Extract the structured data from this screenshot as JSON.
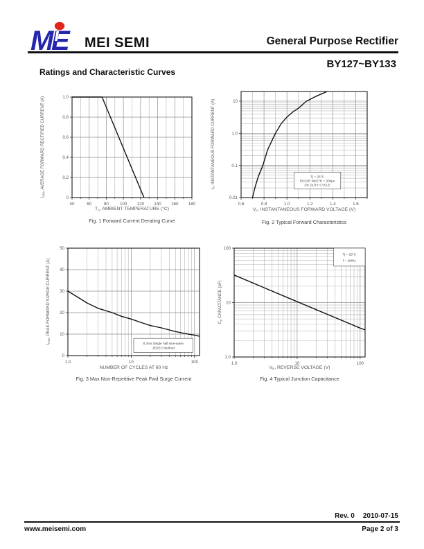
{
  "header": {
    "brand": "MEI SEMI",
    "doc_type": "General Purpose Rectifier",
    "part_range": "BY127~BY133",
    "section_title": "Ratings and Characteristic Curves",
    "logo": {
      "m": "M",
      "e": "E",
      "letter_color": "#2526ad",
      "dot_color": "#e3241c"
    }
  },
  "footer": {
    "revision": "Rev. 0",
    "date": "2010-07-15",
    "website": "www.meisemi.com",
    "page": "Page 2 of 3"
  },
  "chart_data": [
    {
      "id": "fig1",
      "type": "line",
      "caption": "Fig. 1 Forward Current Derating Curve",
      "xlabel": {
        "sym": "T",
        "sub": "A",
        "rest": ", AMBIENT TEMPERATURE (°C)"
      },
      "ylabel": {
        "sym": "I",
        "sub": "(AV)",
        "rest": ", AVERAGE FORWARD RECTIFIED CURRENT (A)"
      },
      "x_scale": "linear",
      "y_scale": "linear",
      "xlim": [
        40,
        180
      ],
      "ylim": [
        0,
        1
      ],
      "x_ticks": [
        40,
        60,
        80,
        100,
        120,
        140,
        160,
        180
      ],
      "x_tick_labels": [
        "40",
        "60",
        "80",
        "100",
        "120",
        "140",
        "160",
        "180"
      ],
      "x_minor": [
        50,
        70,
        90,
        110,
        130,
        150,
        170
      ],
      "y_ticks": [
        0,
        0.2,
        0.4,
        0.6,
        0.8,
        1.0
      ],
      "y_tick_labels": [
        "0",
        "0.2",
        "0.4",
        "0.6",
        "0.8",
        "1.0"
      ],
      "y_minor": [],
      "series": [
        {
          "name": "derating-curve",
          "points": [
            [
              40,
              1.0
            ],
            [
              75,
              1.0
            ],
            [
              124,
              0
            ]
          ]
        }
      ]
    },
    {
      "id": "fig2",
      "type": "line",
      "caption": "Fig. 2 Typical Forward Characteristics",
      "xlabel": {
        "sym": "V",
        "sub": "F",
        "rest": ", INSTANTANEOUS FORWARD VOLTAGE (V)"
      },
      "ylabel": {
        "sym": "I",
        "sub": "F",
        "rest": ", INSTANTANEOUS FORWARD CURRENT (A)"
      },
      "x_scale": "linear",
      "y_scale": "log",
      "xlim": [
        0.6,
        1.7
      ],
      "ylim": [
        0.01,
        20
      ],
      "x_ticks": [
        0.6,
        0.8,
        1.0,
        1.2,
        1.4,
        1.6
      ],
      "x_tick_labels": [
        "0.6",
        "0.8",
        "1.0",
        "1.2",
        "1.4",
        "1.6"
      ],
      "x_minor": [
        0.7,
        0.9,
        1.1,
        1.3,
        1.5,
        1.7
      ],
      "y_ticks": [
        0.01,
        0.1,
        1,
        10
      ],
      "y_tick_labels": [
        "0.01",
        "0.1",
        "1.0",
        "10"
      ],
      "y_minor": [
        0.02,
        0.03,
        0.04,
        0.05,
        0.06,
        0.07,
        0.08,
        0.09,
        0.2,
        0.3,
        0.4,
        0.5,
        0.6,
        0.7,
        0.8,
        0.9,
        2,
        3,
        4,
        5,
        6,
        7,
        8,
        9
      ],
      "series": [
        {
          "name": "vf-if-curve",
          "points": [
            [
              0.7,
              0.01
            ],
            [
              0.72,
              0.02
            ],
            [
              0.75,
              0.045
            ],
            [
              0.79,
              0.1
            ],
            [
              0.83,
              0.3
            ],
            [
              0.87,
              0.6
            ],
            [
              0.9,
              1.0
            ],
            [
              0.95,
              2.0
            ],
            [
              1.0,
              3.2
            ],
            [
              1.05,
              4.6
            ],
            [
              1.1,
              6.0
            ],
            [
              1.17,
              10
            ],
            [
              1.25,
              14
            ],
            [
              1.35,
              20
            ]
          ]
        }
      ],
      "annotation": {
        "lines": [
          "Tj = 25°C",
          "PULSE WIDTH = 300μs",
          "2% DUTY CYCLE"
        ],
        "box": [
          0.42,
          0.76,
          0.37,
          0.16
        ]
      }
    },
    {
      "id": "fig3",
      "type": "line",
      "caption": "Fig. 3  Max Non-Repetitive Peak Fwd Surge Current",
      "xlabel": {
        "sym": "",
        "sub": "",
        "rest": "NUMBER OF CYCLES AT 60 Hz"
      },
      "ylabel": {
        "sym": "I",
        "sub": "FSM",
        "rest": ", PEAK FORWARD SURGE CURRENT (A)"
      },
      "x_scale": "log",
      "y_scale": "linear",
      "xlim": [
        1,
        120
      ],
      "ylim": [
        0,
        50
      ],
      "x_ticks": [
        1,
        10,
        100
      ],
      "x_tick_labels": [
        "1.0",
        "10",
        "100"
      ],
      "x_minor": [
        2,
        3,
        4,
        5,
        6,
        7,
        8,
        9,
        20,
        30,
        40,
        50,
        60,
        70,
        80,
        90
      ],
      "y_ticks": [
        0,
        10,
        20,
        30,
        40,
        50
      ],
      "y_tick_labels": [
        "0",
        "10",
        "20",
        "30",
        "40",
        "50"
      ],
      "y_minor": [],
      "series": [
        {
          "name": "surge-current-curve",
          "points": [
            [
              1,
              30
            ],
            [
              1.5,
              26.8
            ],
            [
              2,
              24.5
            ],
            [
              3,
              22
            ],
            [
              5,
              20
            ],
            [
              7,
              18.3
            ],
            [
              10,
              17
            ],
            [
              15,
              15.2
            ],
            [
              20,
              14
            ],
            [
              30,
              12.9
            ],
            [
              50,
              11.2
            ],
            [
              70,
              10.3
            ],
            [
              100,
              9.5
            ],
            [
              120,
              9
            ]
          ]
        }
      ],
      "annotation": {
        "lines": [
          "8.3ms Single half sine-wave",
          "JEDEC Method"
        ],
        "box": [
          0.5,
          0.84,
          0.45,
          0.13
        ]
      }
    },
    {
      "id": "fig4",
      "type": "line",
      "caption": "Fig. 4 Typical Junction Capacitance",
      "xlabel": {
        "sym": "V",
        "sub": "R",
        "rest": ", REVERSE VOLTAGE (V)"
      },
      "ylabel": {
        "sym": "C",
        "sub": "j",
        "rest": ", CAPACITANCE (pF)"
      },
      "x_scale": "log",
      "y_scale": "log",
      "xlim": [
        1,
        120
      ],
      "ylim": [
        1,
        100
      ],
      "x_ticks": [
        1,
        10,
        100
      ],
      "x_tick_labels": [
        "1.0",
        "10",
        "100"
      ],
      "x_minor": [
        2,
        3,
        4,
        5,
        6,
        7,
        8,
        9,
        20,
        30,
        40,
        50,
        60,
        70,
        80,
        90
      ],
      "y_ticks": [
        1,
        10,
        100
      ],
      "y_tick_labels": [
        "1.0",
        "10",
        "100"
      ],
      "y_minor": [
        2,
        3,
        4,
        5,
        6,
        7,
        8,
        9,
        20,
        30,
        40,
        50,
        60,
        70,
        80,
        90
      ],
      "series": [
        {
          "name": "junction-capacitance-line",
          "points": [
            [
              1,
              32
            ],
            [
              10,
              10.4
            ],
            [
              100,
              3.4
            ],
            [
              120,
              3.15
            ]
          ]
        }
      ],
      "annotation": {
        "lines": [
          "Tj = 25°C",
          "f = 1MHz"
        ],
        "box": [
          0.76,
          0.0,
          0.24,
          0.165
        ]
      }
    }
  ]
}
